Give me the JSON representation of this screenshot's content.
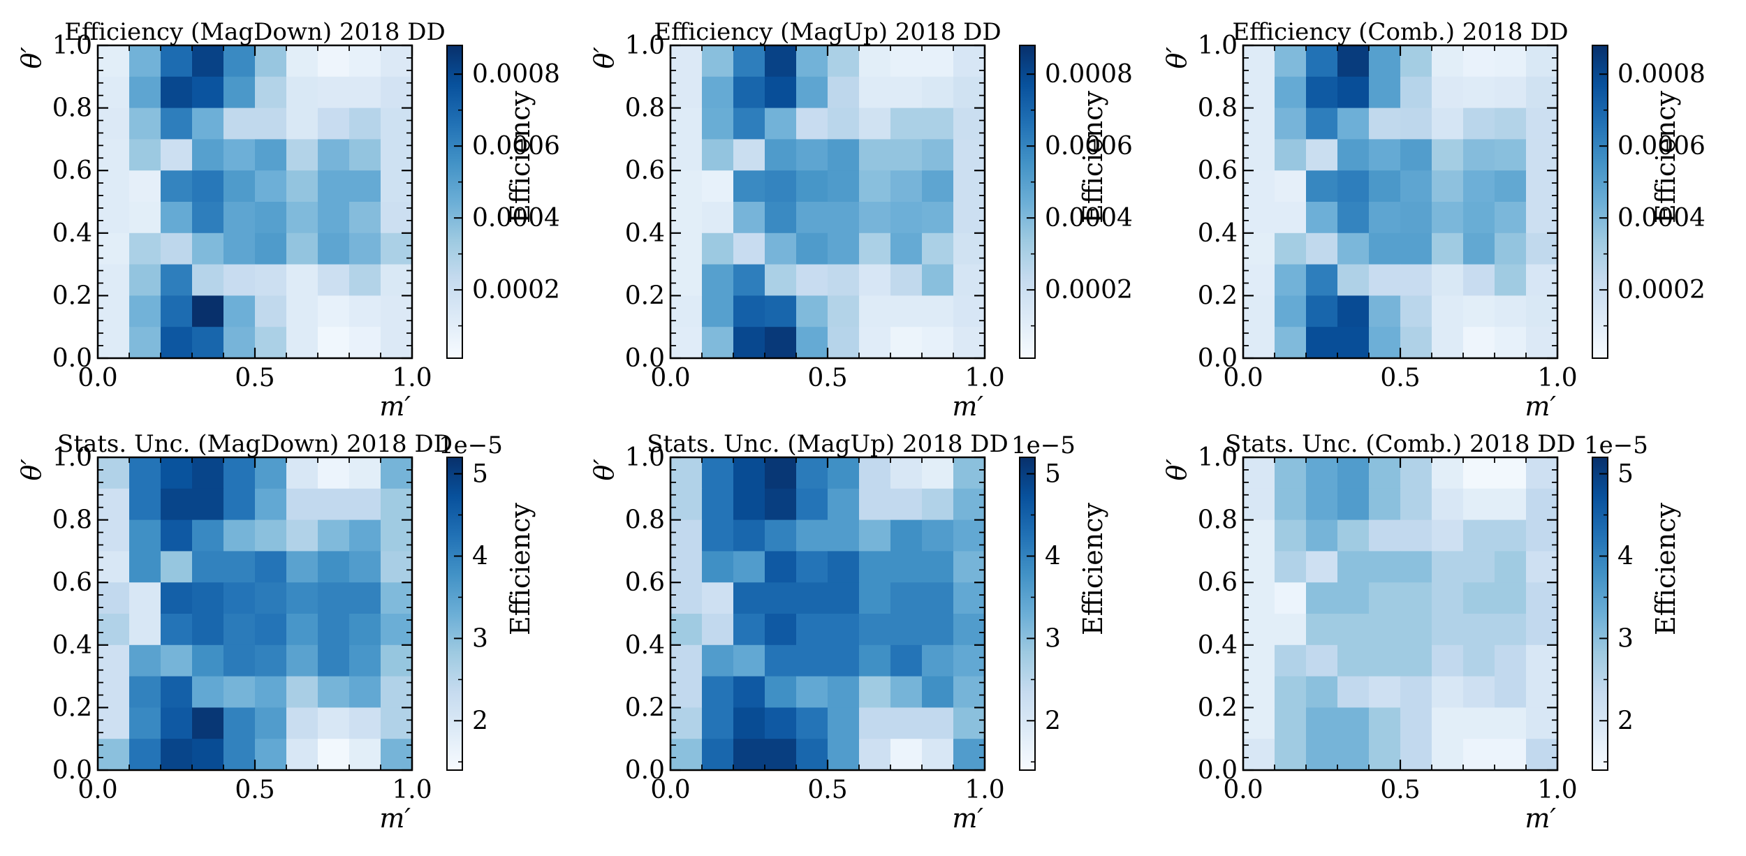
{
  "chart_data": [
    {
      "type": "heatmap",
      "title": "Efficiency (MagDown) 2018 DD",
      "xlabel": "m′",
      "ylabel": "θ′",
      "xlim": [
        0,
        1
      ],
      "ylim": [
        0,
        1
      ],
      "xticks": [
        "0.0",
        "0.5",
        "1.0"
      ],
      "yticks": [
        "0.0",
        "0.2",
        "0.4",
        "0.6",
        "0.8",
        "1.0"
      ],
      "colorbar": {
        "label": "Efficiency",
        "min": 1e-05,
        "max": 0.00088,
        "ticks": [
          0.0002,
          0.0004,
          0.0006,
          0.0008
        ],
        "tick_labels": [
          "0.0002",
          "0.0004",
          "0.0006",
          "0.0008"
        ],
        "offset": ""
      },
      "values_top_to_bottom": [
        [
          0.0001,
          0.00043,
          0.00068,
          0.00082,
          0.00058,
          0.00035,
          0.0001,
          5e-05,
          8e-05,
          0.00013
        ],
        [
          0.00012,
          0.00048,
          0.0008,
          0.00076,
          0.00053,
          0.00028,
          0.00014,
          0.00013,
          0.00013,
          0.00017
        ],
        [
          0.00013,
          0.00038,
          0.00062,
          0.00044,
          0.00024,
          0.00024,
          0.00014,
          0.00022,
          0.00027,
          0.00019
        ],
        [
          0.00012,
          0.00034,
          0.0002,
          0.0005,
          0.00044,
          0.0005,
          0.00028,
          0.00042,
          0.00036,
          0.00019
        ],
        [
          0.00012,
          9e-05,
          0.0006,
          0.00064,
          0.00052,
          0.00044,
          0.00036,
          0.00046,
          0.00046,
          0.00019
        ],
        [
          0.00012,
          0.0001,
          0.00046,
          0.00062,
          0.00048,
          0.0005,
          0.0004,
          0.00046,
          0.00039,
          0.0002
        ],
        [
          0.0001,
          0.0003,
          0.00025,
          0.0004,
          0.00048,
          0.00052,
          0.00036,
          0.00048,
          0.00042,
          0.0003
        ],
        [
          0.00012,
          0.00036,
          0.00062,
          0.00027,
          0.00022,
          0.0002,
          0.00012,
          0.0002,
          0.00028,
          0.00014
        ],
        [
          0.00012,
          0.00043,
          0.00068,
          0.00088,
          0.00044,
          0.00024,
          0.00012,
          8e-05,
          0.00011,
          0.00013
        ],
        [
          0.00012,
          0.0004,
          0.00075,
          0.0007,
          0.00042,
          0.0003,
          0.00012,
          4e-05,
          7e-05,
          0.00013
        ]
      ]
    },
    {
      "type": "heatmap",
      "title": "Efficiency (MagUp) 2018 DD",
      "xlabel": "m′",
      "ylabel": "θ′",
      "xlim": [
        0,
        1
      ],
      "ylim": [
        0,
        1
      ],
      "xticks": [
        "0.0",
        "0.5",
        "1.0"
      ],
      "yticks": [
        "0.0",
        "0.2",
        "0.4",
        "0.6",
        "0.8",
        "1.0"
      ],
      "colorbar": {
        "label": "Efficiency",
        "min": 1e-05,
        "max": 0.00088,
        "ticks": [
          0.0002,
          0.0004,
          0.0006,
          0.0008
        ],
        "tick_labels": [
          "0.0002",
          "0.0004",
          "0.0006",
          "0.0008"
        ],
        "offset": ""
      },
      "values_top_to_bottom": [
        [
          0.00013,
          0.00038,
          0.00062,
          0.00082,
          0.00043,
          0.0003,
          0.0001,
          8e-05,
          8e-05,
          0.00015
        ],
        [
          0.00013,
          0.00046,
          0.0007,
          0.00078,
          0.00048,
          0.00025,
          0.00012,
          0.00012,
          0.00014,
          0.00018
        ],
        [
          0.00012,
          0.00045,
          0.00062,
          0.00043,
          0.00022,
          0.00026,
          0.00018,
          0.0003,
          0.0003,
          0.00021
        ],
        [
          0.00012,
          0.00036,
          0.00021,
          0.00052,
          0.00048,
          0.00052,
          0.00036,
          0.00036,
          0.00039,
          0.0002
        ],
        [
          0.0001,
          8e-05,
          0.00058,
          0.0006,
          0.00054,
          0.00052,
          0.00038,
          0.00042,
          0.00048,
          0.0002
        ],
        [
          0.0001,
          0.00012,
          0.00042,
          0.00058,
          0.00048,
          0.00048,
          0.00042,
          0.00044,
          0.00043,
          0.0002
        ],
        [
          0.0001,
          0.00034,
          0.00022,
          0.00042,
          0.00052,
          0.00048,
          0.0003,
          0.00046,
          0.0003,
          0.00018
        ],
        [
          0.0001,
          0.0005,
          0.00062,
          0.0003,
          0.00022,
          0.00024,
          0.00015,
          0.00024,
          0.00038,
          0.00016
        ],
        [
          0.00012,
          0.0005,
          0.00072,
          0.0007,
          0.0004,
          0.00028,
          0.00012,
          0.00012,
          0.00012,
          0.00015
        ],
        [
          0.00011,
          0.0004,
          0.0008,
          0.00085,
          0.00046,
          0.00027,
          0.00011,
          6e-05,
          8e-05,
          0.00013
        ]
      ]
    },
    {
      "type": "heatmap",
      "title": "Efficiency (Comb.) 2018 DD",
      "xlabel": "m′",
      "ylabel": "θ′",
      "xlim": [
        0,
        1
      ],
      "ylim": [
        0,
        1
      ],
      "xticks": [
        "0.0",
        "0.5",
        "1.0"
      ],
      "yticks": [
        "0.0",
        "0.2",
        "0.4",
        "0.6",
        "0.8",
        "1.0"
      ],
      "colorbar": {
        "label": "Efficiency",
        "min": 1e-05,
        "max": 0.00088,
        "ticks": [
          0.0002,
          0.0004,
          0.0006,
          0.0008
        ],
        "tick_labels": [
          "0.0002",
          "0.0004",
          "0.0006",
          "0.0008"
        ],
        "offset": ""
      },
      "values_top_to_bottom": [
        [
          0.00012,
          0.0004,
          0.00066,
          0.00084,
          0.0005,
          0.00032,
          0.0001,
          7e-05,
          8e-05,
          0.00014
        ],
        [
          0.00012,
          0.00046,
          0.00074,
          0.00078,
          0.0005,
          0.00027,
          0.00013,
          0.00012,
          0.00013,
          0.00018
        ],
        [
          0.00012,
          0.00042,
          0.00062,
          0.00044,
          0.00024,
          0.00025,
          0.00016,
          0.00026,
          0.00028,
          0.0002
        ],
        [
          0.00012,
          0.00035,
          0.00021,
          0.00051,
          0.00046,
          0.00051,
          0.00032,
          0.00039,
          0.00038,
          0.0002
        ],
        [
          0.00011,
          9e-05,
          0.00059,
          0.00062,
          0.00053,
          0.00048,
          0.00037,
          0.00044,
          0.00047,
          0.0002
        ],
        [
          0.00011,
          0.00011,
          0.00044,
          0.0006,
          0.00048,
          0.00049,
          0.00041,
          0.00045,
          0.00041,
          0.0002
        ],
        [
          0.0001,
          0.00032,
          0.00024,
          0.00041,
          0.0005,
          0.0005,
          0.00033,
          0.00047,
          0.00036,
          0.00024
        ],
        [
          0.00011,
          0.00043,
          0.00062,
          0.00029,
          0.00022,
          0.00022,
          0.00014,
          0.00022,
          0.00033,
          0.00015
        ],
        [
          0.00012,
          0.00046,
          0.0007,
          0.00079,
          0.00042,
          0.00026,
          0.00012,
          0.0001,
          0.00012,
          0.00014
        ],
        [
          0.00012,
          0.0004,
          0.00078,
          0.00078,
          0.00044,
          0.00029,
          0.00012,
          5e-05,
          8e-05,
          0.00013
        ]
      ]
    },
    {
      "type": "heatmap",
      "title": "Stats. Unc. (MagDown) 2018 DD",
      "xlabel": "m′",
      "ylabel": "θ′",
      "xlim": [
        0,
        1
      ],
      "ylim": [
        0,
        1
      ],
      "xticks": [
        "0.0",
        "0.5",
        "1.0"
      ],
      "yticks": [
        "0.0",
        "0.2",
        "0.4",
        "0.6",
        "0.8",
        "1.0"
      ],
      "colorbar": {
        "label": "Efficiency",
        "min": 1.4,
        "max": 5.2,
        "ticks": [
          2,
          3,
          4,
          5
        ],
        "tick_labels": [
          "2",
          "3",
          "4",
          "5"
        ],
        "offset": "1e−5"
      },
      "values_top_to_bottom": [
        [
          2.6,
          4.2,
          4.7,
          4.9,
          4.2,
          3.6,
          2.0,
          1.6,
          1.8,
          3.2
        ],
        [
          2.2,
          4.2,
          4.9,
          4.9,
          4.2,
          3.4,
          2.4,
          2.4,
          2.4,
          2.8
        ],
        [
          2.2,
          3.8,
          4.6,
          3.9,
          3.2,
          3.0,
          2.6,
          3.1,
          3.4,
          2.8
        ],
        [
          2.0,
          3.8,
          2.9,
          4.0,
          4.0,
          4.2,
          3.5,
          3.8,
          3.6,
          2.7
        ],
        [
          2.4,
          2.0,
          4.5,
          4.4,
          4.2,
          4.1,
          3.9,
          4.0,
          4.0,
          3.1
        ],
        [
          2.6,
          2.0,
          4.2,
          4.4,
          4.1,
          4.2,
          3.7,
          4.0,
          3.8,
          3.3
        ],
        [
          2.2,
          3.5,
          3.2,
          3.8,
          4.1,
          4.0,
          3.5,
          4.0,
          3.7,
          2.9
        ],
        [
          2.2,
          4.0,
          4.5,
          3.4,
          3.2,
          3.4,
          2.7,
          3.2,
          3.4,
          2.6
        ],
        [
          2.2,
          3.9,
          4.6,
          5.1,
          4.0,
          3.6,
          2.3,
          2.0,
          2.2,
          2.6
        ],
        [
          3.0,
          4.2,
          4.9,
          4.8,
          4.0,
          3.4,
          2.0,
          1.5,
          1.8,
          3.2
        ]
      ]
    },
    {
      "type": "heatmap",
      "title": "Stats. Unc. (MagUp) 2018 DD",
      "xlabel": "m′",
      "ylabel": "θ′",
      "xlim": [
        0,
        1
      ],
      "ylim": [
        0,
        1
      ],
      "xticks": [
        "0.0",
        "0.5",
        "1.0"
      ],
      "yticks": [
        "0.0",
        "0.2",
        "0.4",
        "0.6",
        "0.8",
        "1.0"
      ],
      "colorbar": {
        "label": "Efficiency",
        "min": 1.4,
        "max": 5.2,
        "ticks": [
          2,
          3,
          4,
          5
        ],
        "tick_labels": [
          "2",
          "3",
          "4",
          "5"
        ],
        "offset": "1e−5"
      },
      "values_top_to_bottom": [
        [
          2.6,
          4.2,
          4.8,
          5.1,
          4.1,
          3.8,
          2.4,
          2.0,
          1.8,
          3.0
        ],
        [
          2.6,
          4.2,
          4.8,
          5.0,
          4.2,
          3.6,
          2.4,
          2.4,
          2.6,
          3.2
        ],
        [
          2.4,
          4.2,
          4.4,
          4.0,
          3.6,
          3.6,
          3.2,
          3.8,
          3.6,
          3.4
        ],
        [
          2.4,
          3.8,
          3.6,
          4.6,
          4.2,
          4.4,
          3.8,
          3.8,
          3.8,
          3.2
        ],
        [
          2.4,
          2.2,
          4.4,
          4.4,
          4.4,
          4.4,
          3.8,
          4.0,
          4.0,
          3.4
        ],
        [
          2.8,
          2.4,
          4.2,
          4.6,
          4.2,
          4.2,
          4.0,
          4.0,
          4.0,
          3.6
        ],
        [
          2.4,
          3.6,
          3.4,
          4.2,
          4.2,
          4.2,
          3.8,
          4.2,
          3.6,
          3.4
        ],
        [
          2.4,
          4.2,
          4.6,
          3.8,
          3.4,
          3.6,
          2.8,
          3.2,
          3.8,
          3.2
        ],
        [
          2.6,
          4.2,
          4.8,
          4.6,
          4.2,
          3.6,
          2.4,
          2.4,
          2.4,
          3.0
        ],
        [
          3.0,
          4.4,
          5.0,
          5.0,
          4.4,
          3.6,
          2.2,
          1.6,
          2.0,
          3.6
        ]
      ]
    },
    {
      "type": "heatmap",
      "title": "Stats. Unc. (Comb.) 2018 DD",
      "xlabel": "m′",
      "ylabel": "θ′",
      "xlim": [
        0,
        1
      ],
      "ylim": [
        0,
        1
      ],
      "xticks": [
        "0.0",
        "0.5",
        "1.0"
      ],
      "yticks": [
        "0.0",
        "0.2",
        "0.4",
        "0.6",
        "0.8",
        "1.0"
      ],
      "colorbar": {
        "label": "Efficiency",
        "min": 1.4,
        "max": 5.2,
        "ticks": [
          2,
          3,
          4,
          5
        ],
        "tick_labels": [
          "2",
          "3",
          "4",
          "5"
        ],
        "offset": "1e−5"
      },
      "values_top_to_bottom": [
        [
          2.0,
          3.0,
          3.4,
          3.6,
          3.0,
          2.6,
          1.8,
          1.5,
          1.5,
          2.2
        ],
        [
          2.0,
          3.0,
          3.4,
          3.6,
          3.0,
          2.6,
          2.0,
          1.8,
          1.8,
          2.4
        ],
        [
          1.8,
          2.8,
          3.2,
          2.8,
          2.4,
          2.4,
          2.2,
          2.6,
          2.6,
          2.4
        ],
        [
          1.8,
          2.6,
          2.2,
          3.0,
          3.0,
          3.0,
          2.6,
          2.6,
          2.8,
          2.2
        ],
        [
          1.8,
          1.6,
          3.0,
          3.0,
          2.8,
          2.8,
          2.6,
          2.8,
          2.8,
          2.4
        ],
        [
          1.8,
          1.8,
          2.8,
          2.8,
          2.8,
          2.8,
          2.6,
          2.6,
          2.6,
          2.4
        ],
        [
          1.8,
          2.6,
          2.4,
          2.8,
          2.8,
          2.8,
          2.4,
          2.6,
          2.4,
          2.0
        ],
        [
          1.8,
          2.8,
          3.0,
          2.4,
          2.2,
          2.4,
          2.0,
          2.2,
          2.4,
          2.0
        ],
        [
          1.8,
          2.8,
          3.2,
          3.2,
          2.8,
          2.4,
          1.8,
          1.8,
          1.8,
          2.0
        ],
        [
          2.0,
          2.8,
          3.2,
          3.2,
          2.8,
          2.4,
          1.8,
          1.6,
          1.6,
          2.4
        ]
      ]
    }
  ]
}
